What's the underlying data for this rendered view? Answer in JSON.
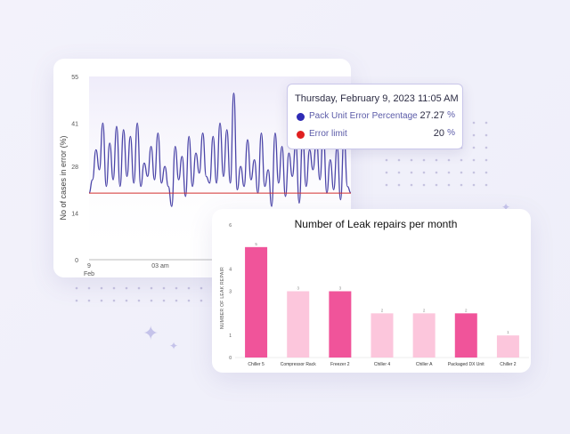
{
  "line_chart": {
    "ylabel": "No of cases in error (%)",
    "yticks": [
      "55",
      "41",
      "28",
      "14",
      "0"
    ],
    "xticks": [
      {
        "line1": "9",
        "line2": "Feb"
      },
      {
        "line1": "03 am",
        "line2": ""
      },
      {
        "line1": "",
        "line2": ""
      }
    ],
    "series_color": "#4b45a8",
    "limit_color": "#d22f2f",
    "limit_value": 20
  },
  "tooltip": {
    "date": "Thursday, February 9, 2023 11:05 AM",
    "rows": [
      {
        "label": "Pack Unit Error Percentage",
        "value": "27.27",
        "unit": "%",
        "color": "#2f2bb5"
      },
      {
        "label": "Error limit",
        "value": "20",
        "unit": "%",
        "color": "#e02020"
      }
    ]
  },
  "chart_data": [
    {
      "type": "line",
      "title": "",
      "ylabel": "No of cases in error (%)",
      "ylim": [
        0,
        55
      ],
      "x_start_label": "9 Feb",
      "series": [
        {
          "values": [
            20,
            24,
            33,
            27,
            41,
            22,
            35,
            24,
            40,
            22,
            39,
            25,
            37,
            23,
            41,
            22,
            29,
            25,
            34,
            24,
            38,
            23,
            28,
            22,
            16,
            34,
            24,
            31,
            19,
            37,
            22,
            32,
            26,
            38,
            25,
            23,
            37,
            23,
            41,
            25,
            39,
            23,
            50,
            21,
            28,
            22,
            36,
            24,
            30,
            20,
            38,
            22,
            27,
            16,
            38,
            23,
            34,
            19,
            32,
            25,
            35,
            17,
            37,
            22,
            33,
            27,
            36,
            24,
            38,
            20,
            30,
            21,
            34,
            18,
            37,
            22,
            20
          ]
        },
        {
          "name": "Error limit",
          "values": [
            20,
            20
          ]
        }
      ]
    },
    {
      "type": "bar",
      "title": "Number of Leak repairs per month",
      "ylabel": "NUMBER OF LEAK REPAIR",
      "ylim": [
        0,
        6
      ],
      "yticks": [
        0,
        1,
        3,
        4,
        6
      ],
      "categories": [
        "Chiller 5",
        "Compressor Rack",
        "Freezer 2",
        "Chiller 4",
        "Chiller A",
        "Packaged DX Unit",
        "Chiller 2"
      ],
      "values": [
        5,
        3,
        3,
        2,
        2,
        2,
        1
      ],
      "value_labels": [
        "5",
        "3",
        "3",
        "2",
        "2",
        "2",
        "1"
      ],
      "colors": [
        "#f0549a",
        "#fcc6dc",
        "#f0549a",
        "#fcc6dc",
        "#fcc6dc",
        "#f0549a",
        "#fcc6dc"
      ]
    }
  ]
}
